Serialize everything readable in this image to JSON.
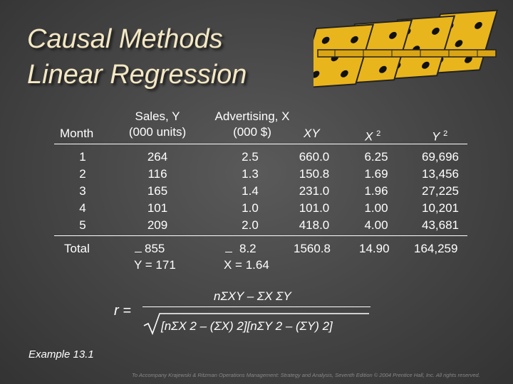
{
  "title": {
    "line1": "Causal Methods",
    "line2": "Linear Regression"
  },
  "headers": {
    "month": "Month",
    "sales_l1": "Sales, Y",
    "sales_l2": "(000 units)",
    "adv_l1": "Advertising, X",
    "adv_l2": "(000 $)",
    "xy": "XY",
    "x2": "X",
    "y2": "Y",
    "sq": "2"
  },
  "rows": {
    "month": [
      "1",
      "2",
      "3",
      "4",
      "5"
    ],
    "sales": [
      "264",
      "116",
      "165",
      "101",
      "209"
    ],
    "advertising": [
      "2.5",
      "1.3",
      "1.4",
      "1.0",
      "2.0"
    ],
    "xy": [
      "660.0",
      "150.8",
      "231.0",
      "101.0",
      "418.0"
    ],
    "x2": [
      "6.25",
      "1.69",
      "1.96",
      "1.00",
      "4.00"
    ],
    "y2": [
      "69,696",
      "13,456",
      "27,225",
      "10,201",
      "43,681"
    ]
  },
  "totals": {
    "label": "Total",
    "sales": "855",
    "advertising": "8.2",
    "xy": "1560.8",
    "x2": "14.90",
    "y2": "164,259",
    "ybar": "Y = 171",
    "xbar": "X = 1.64"
  },
  "formula": {
    "lhs": "r =",
    "numerator": "nΣXY – ΣX ΣY",
    "denominator": "[nΣX 2 – (ΣX) 2][nΣY 2 – (ΣY) 2]"
  },
  "footer": {
    "example": "Example 13.1",
    "credit": "To Accompany Krajewski & Ritzman Operations Management: Strategy and Analysis, Seventh Edition © 2004 Prentice Hall, Inc. All rights reserved."
  }
}
